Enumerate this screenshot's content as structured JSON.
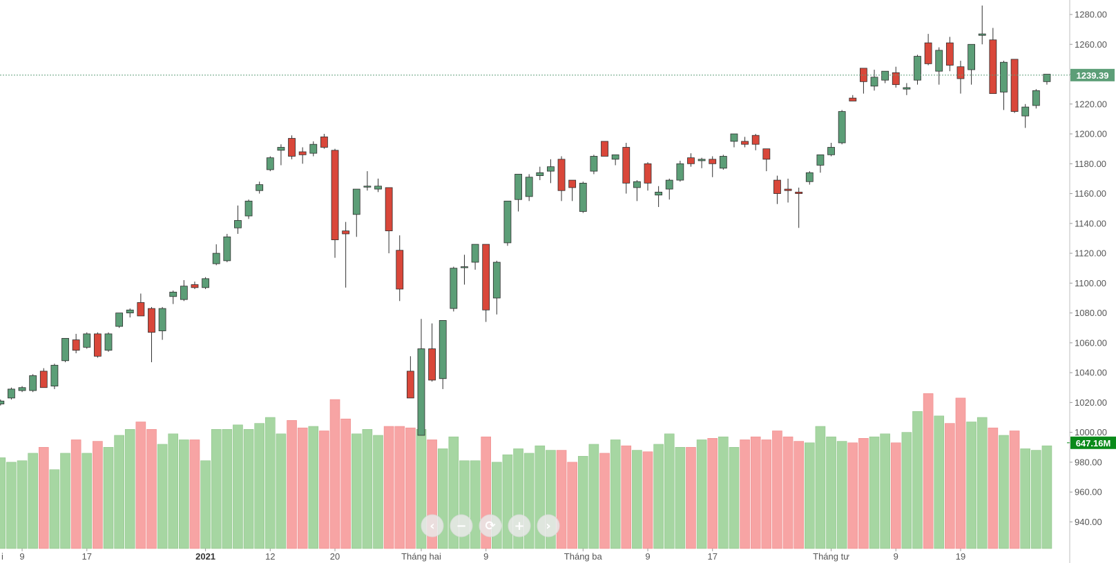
{
  "chart_data": {
    "type": "candlestick",
    "ylim": [
      930,
      1290
    ],
    "price_ticks": [
      "1280.00",
      "1260.00",
      "1240.00",
      "1220.00",
      "1200.00",
      "1180.00",
      "1160.00",
      "1140.00",
      "1120.00",
      "1100.00",
      "1080.00",
      "1060.00",
      "1040.00",
      "1020.00",
      "1000.00",
      "980.00",
      "960.00",
      "940.00"
    ],
    "x_labels": [
      {
        "label": "i",
        "bar": -0.9,
        "bold": false
      },
      {
        "label": "9",
        "bar": 2,
        "bold": false
      },
      {
        "label": "17",
        "bar": 8,
        "bold": false
      },
      {
        "label": "2021",
        "bar": 19,
        "bold": true
      },
      {
        "label": "12",
        "bar": 25,
        "bold": false
      },
      {
        "label": "20",
        "bar": 31,
        "bold": false
      },
      {
        "label": "Tháng hai",
        "bar": 39,
        "bold": false
      },
      {
        "label": "9",
        "bar": 45,
        "bold": false
      },
      {
        "label": "Tháng ba",
        "bar": 54,
        "bold": false
      },
      {
        "label": "9",
        "bar": 60,
        "bold": false
      },
      {
        "label": "17",
        "bar": 66,
        "bold": false
      },
      {
        "label": "Tháng tư",
        "bar": 77,
        "bold": false
      },
      {
        "label": "9",
        "bar": 83,
        "bold": false
      },
      {
        "label": "19",
        "bar": 89,
        "bold": false
      }
    ],
    "candles": [
      [
        1019,
        1022,
        1018,
        1021
      ],
      [
        1023,
        1030,
        1022,
        1029
      ],
      [
        1028,
        1031,
        1027,
        1030
      ],
      [
        1028,
        1039,
        1027,
        1038
      ],
      [
        1041,
        1043,
        1030,
        1030
      ],
      [
        1031,
        1046,
        1029,
        1045
      ],
      [
        1048,
        1063,
        1047,
        1063
      ],
      [
        1062,
        1066,
        1053,
        1055
      ],
      [
        1057,
        1067,
        1056,
        1066
      ],
      [
        1066,
        1067,
        1050,
        1051
      ],
      [
        1055,
        1067,
        1054,
        1066
      ],
      [
        1071,
        1080,
        1070,
        1080
      ],
      [
        1080,
        1083,
        1077,
        1082
      ],
      [
        1087,
        1093,
        1078,
        1078
      ],
      [
        1083,
        1084,
        1047,
        1067
      ],
      [
        1068,
        1084,
        1062,
        1083
      ],
      [
        1091,
        1095,
        1086,
        1094
      ],
      [
        1089,
        1102,
        1088,
        1098
      ],
      [
        1099,
        1101,
        1096,
        1097
      ],
      [
        1097,
        1104,
        1096,
        1103
      ],
      [
        1113,
        1126,
        1112,
        1120
      ],
      [
        1115,
        1133,
        1114,
        1131
      ],
      [
        1137,
        1152,
        1133,
        1142
      ],
      [
        1145,
        1156,
        1143,
        1155
      ],
      [
        1162,
        1168,
        1160,
        1166
      ],
      [
        1176,
        1185,
        1175,
        1184
      ],
      [
        1189,
        1193,
        1179,
        1191
      ],
      [
        1197,
        1199,
        1183,
        1185
      ],
      [
        1188,
        1191,
        1180,
        1186
      ],
      [
        1187,
        1195,
        1185,
        1193
      ],
      [
        1198,
        1200,
        1190,
        1191
      ],
      [
        1189,
        1190,
        1117,
        1129
      ],
      [
        1135,
        1141,
        1097,
        1133
      ],
      [
        1146,
        1163,
        1131,
        1163
      ],
      [
        1165,
        1175,
        1162,
        1165
      ],
      [
        1163,
        1170,
        1161,
        1165
      ],
      [
        1164,
        1164,
        1120,
        1135
      ],
      [
        1122,
        1132,
        1088,
        1096
      ],
      [
        1041,
        1051,
        1023,
        1023
      ],
      [
        998,
        1076,
        998,
        1056
      ],
      [
        1056,
        1073,
        1034,
        1035
      ],
      [
        1036,
        1075,
        1029,
        1075
      ],
      [
        1083,
        1111,
        1081,
        1110
      ],
      [
        1111,
        1119,
        1099,
        1111
      ],
      [
        1114,
        1126,
        1109,
        1126
      ],
      [
        1126,
        1126,
        1074,
        1082
      ],
      [
        1090,
        1115,
        1079,
        1114
      ],
      [
        1127,
        1155,
        1125,
        1155
      ],
      [
        1156,
        1173,
        1148,
        1173
      ],
      [
        1158,
        1173,
        1155,
        1171
      ],
      [
        1172,
        1178,
        1169,
        1174
      ],
      [
        1175,
        1183,
        1167,
        1178
      ],
      [
        1183,
        1185,
        1155,
        1162
      ],
      [
        1169,
        1169,
        1155,
        1164
      ],
      [
        1148,
        1168,
        1147,
        1167
      ],
      [
        1175,
        1186,
        1173,
        1185
      ],
      [
        1195,
        1195,
        1185,
        1185
      ],
      [
        1183,
        1186,
        1179,
        1186
      ],
      [
        1191,
        1194,
        1160,
        1167
      ],
      [
        1164,
        1169,
        1155,
        1168
      ],
      [
        1180,
        1181,
        1162,
        1167
      ],
      [
        1159,
        1165,
        1151,
        1161
      ],
      [
        1163,
        1170,
        1156,
        1169
      ],
      [
        1169,
        1182,
        1168,
        1180
      ],
      [
        1184,
        1187,
        1178,
        1180
      ],
      [
        1182,
        1184,
        1177,
        1183
      ],
      [
        1183,
        1185,
        1171,
        1180
      ],
      [
        1177,
        1186,
        1176,
        1185
      ],
      [
        1195,
        1200,
        1191,
        1200
      ],
      [
        1195,
        1198,
        1191,
        1193
      ],
      [
        1199,
        1200,
        1189,
        1193
      ],
      [
        1190,
        1190,
        1175,
        1183
      ],
      [
        1169,
        1172,
        1153,
        1160
      ],
      [
        1163,
        1170,
        1154,
        1162
      ],
      [
        1161,
        1164,
        1137,
        1160
      ],
      [
        1168,
        1175,
        1166,
        1174
      ],
      [
        1179,
        1185,
        1174,
        1186
      ],
      [
        1186,
        1194,
        1185,
        1191
      ],
      [
        1194,
        1216,
        1193,
        1215
      ],
      [
        1224,
        1226,
        1222,
        1222
      ],
      [
        1244,
        1244,
        1227,
        1235
      ],
      [
        1232,
        1243,
        1229,
        1238
      ],
      [
        1236,
        1242,
        1234,
        1242
      ],
      [
        1241,
        1245,
        1231,
        1233
      ],
      [
        1230,
        1234,
        1226,
        1231
      ],
      [
        1236,
        1253,
        1233,
        1252
      ],
      [
        1261,
        1267,
        1246,
        1247
      ],
      [
        1242,
        1258,
        1233,
        1256
      ],
      [
        1261,
        1265,
        1242,
        1246
      ],
      [
        1245,
        1249,
        1227,
        1237
      ],
      [
        1243,
        1260,
        1233,
        1260
      ],
      [
        1266,
        1286,
        1260,
        1267
      ],
      [
        1263,
        1271,
        1227,
        1227
      ],
      [
        1228,
        1249,
        1216,
        1248
      ],
      [
        1250,
        1250,
        1214,
        1215
      ],
      [
        1212,
        1220,
        1204,
        1218
      ],
      [
        1219,
        1230,
        1217,
        1229
      ],
      [
        1235,
        1240,
        1233,
        1240
      ]
    ],
    "volume_levels": [
      983,
      980,
      981,
      986,
      990,
      975,
      986,
      995,
      986,
      994,
      990,
      998,
      1002,
      1007,
      1002,
      992,
      999,
      995,
      995,
      981,
      1002,
      1002,
      1005,
      1002,
      1006,
      1010,
      999,
      1008,
      1003,
      1004,
      1001,
      1022,
      1009,
      999,
      1002,
      998,
      1004,
      1004,
      1003,
      1002,
      995,
      989,
      997,
      981,
      981,
      997,
      980,
      985,
      989,
      986,
      991,
      988,
      988,
      980,
      984,
      992,
      986,
      995,
      991,
      988,
      987,
      992,
      999,
      990,
      990,
      995,
      996,
      997,
      990,
      995,
      997,
      995,
      1001,
      997,
      994,
      993,
      1004,
      997,
      994,
      993,
      996,
      997,
      999,
      993,
      1000,
      1014,
      1026,
      1011,
      1006,
      1023,
      1007,
      1010,
      1003,
      998,
      1001,
      989,
      988,
      991
    ],
    "last_price": "1239.39",
    "last_volume": "647.16M",
    "colors": {
      "up": "#5c9e77",
      "down": "#d9473a",
      "outline": "#2e2e2e",
      "volume_up": "#a6d6a2",
      "volume_down": "#f7a4a4",
      "last_price_bg": "#5c9e77",
      "last_volume_bg": "#0a8a1a"
    }
  },
  "nav_buttons": [
    {
      "name": "scroll-left-button",
      "symbol": "‹"
    },
    {
      "name": "zoom-out-button",
      "symbol": "−"
    },
    {
      "name": "reset-button",
      "symbol": "⟳"
    },
    {
      "name": "zoom-in-button",
      "symbol": "+"
    },
    {
      "name": "scroll-right-button",
      "symbol": "›"
    }
  ]
}
